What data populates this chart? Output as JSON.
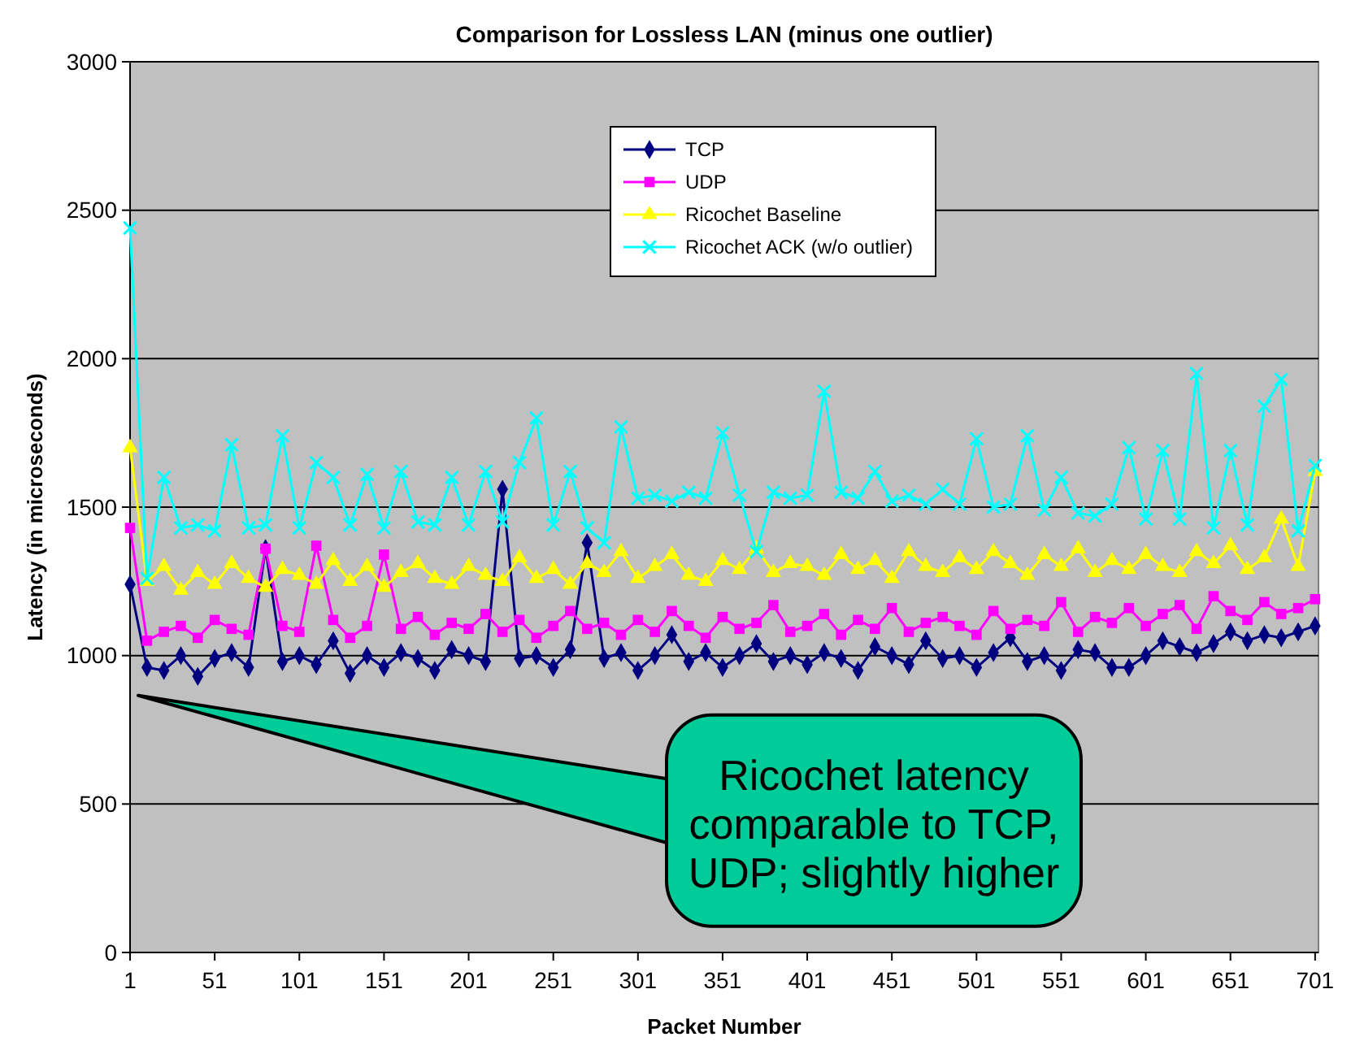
{
  "chart_data": {
    "type": "line",
    "title": "Comparison for Lossless LAN (minus one outlier)",
    "xlabel": "Packet Number",
    "ylabel": "Latency (in microseconds)",
    "x": [
      1,
      11,
      21,
      31,
      41,
      51,
      61,
      71,
      81,
      91,
      101,
      111,
      121,
      131,
      141,
      151,
      161,
      171,
      181,
      191,
      201,
      211,
      221,
      231,
      241,
      251,
      261,
      271,
      281,
      291,
      301,
      311,
      321,
      331,
      341,
      351,
      361,
      371,
      381,
      391,
      401,
      411,
      421,
      431,
      441,
      451,
      461,
      471,
      481,
      491,
      501,
      511,
      521,
      531,
      541,
      551,
      561,
      571,
      581,
      591,
      601,
      611,
      621,
      631,
      641,
      651,
      661,
      671,
      681,
      691,
      701
    ],
    "xlim": [
      1,
      703
    ],
    "xticks": [
      1,
      51,
      101,
      151,
      201,
      251,
      301,
      351,
      401,
      451,
      501,
      551,
      601,
      651,
      701
    ],
    "ylim": [
      0,
      3000
    ],
    "yticks": [
      0,
      500,
      1000,
      1500,
      2000,
      2500,
      3000
    ],
    "grid": "y",
    "legend": "top",
    "series": [
      {
        "name": "TCP",
        "color": "#000080",
        "marker": "diamond",
        "values": [
          1240,
          960,
          950,
          1000,
          930,
          990,
          1010,
          960,
          1360,
          980,
          1000,
          970,
          1050,
          940,
          1000,
          960,
          1010,
          990,
          950,
          1020,
          1000,
          980,
          1560,
          990,
          1000,
          960,
          1020,
          1380,
          990,
          1010,
          950,
          1000,
          1070,
          980,
          1010,
          960,
          1000,
          1040,
          980,
          1000,
          970,
          1010,
          990,
          950,
          1030,
          1000,
          970,
          1050,
          990,
          1000,
          960,
          1010,
          1060,
          980,
          1000,
          950,
          1020,
          1010,
          960,
          960,
          1000,
          1050,
          1030,
          1010,
          1040,
          1080,
          1050,
          1070,
          1060,
          1080,
          1100
        ]
      },
      {
        "name": "UDP",
        "color": "#ff00ff",
        "marker": "square",
        "values": [
          1430,
          1050,
          1080,
          1100,
          1060,
          1120,
          1090,
          1070,
          1360,
          1100,
          1080,
          1370,
          1120,
          1060,
          1100,
          1340,
          1090,
          1130,
          1070,
          1110,
          1090,
          1140,
          1080,
          1120,
          1060,
          1100,
          1150,
          1090,
          1110,
          1070,
          1120,
          1080,
          1150,
          1100,
          1060,
          1130,
          1090,
          1110,
          1170,
          1080,
          1100,
          1140,
          1070,
          1120,
          1090,
          1160,
          1080,
          1110,
          1130,
          1100,
          1070,
          1150,
          1090,
          1120,
          1100,
          1180,
          1080,
          1130,
          1110,
          1160,
          1100,
          1140,
          1170,
          1090,
          1200,
          1150,
          1120,
          1180,
          1140,
          1160,
          1190
        ]
      },
      {
        "name": "Ricochet Baseline",
        "color": "#ffff00",
        "marker": "triangle",
        "values": [
          1700,
          1250,
          1300,
          1220,
          1280,
          1240,
          1310,
          1260,
          1230,
          1290,
          1270,
          1240,
          1320,
          1250,
          1300,
          1230,
          1280,
          1310,
          1260,
          1240,
          1300,
          1270,
          1250,
          1330,
          1260,
          1290,
          1240,
          1310,
          1280,
          1350,
          1260,
          1300,
          1340,
          1270,
          1250,
          1320,
          1290,
          1360,
          1280,
          1310,
          1300,
          1270,
          1340,
          1290,
          1320,
          1260,
          1350,
          1300,
          1280,
          1330,
          1290,
          1350,
          1310,
          1270,
          1340,
          1300,
          1360,
          1280,
          1320,
          1290,
          1340,
          1300,
          1280,
          1350,
          1310,
          1370,
          1290,
          1330,
          1460,
          1300,
          1620
        ]
      },
      {
        "name": "Ricochet ACK (w/o outlier)",
        "color": "#00ffff",
        "marker": "cross",
        "values": [
          2440,
          1260,
          1600,
          1430,
          1440,
          1420,
          1710,
          1430,
          1440,
          1740,
          1430,
          1650,
          1600,
          1440,
          1610,
          1430,
          1620,
          1450,
          1440,
          1600,
          1440,
          1620,
          1450,
          1650,
          1800,
          1440,
          1620,
          1430,
          1380,
          1770,
          1530,
          1540,
          1520,
          1550,
          1530,
          1750,
          1540,
          1350,
          1550,
          1530,
          1540,
          1890,
          1550,
          1530,
          1620,
          1520,
          1540,
          1510,
          1560,
          1510,
          1730,
          1500,
          1510,
          1740,
          1490,
          1600,
          1480,
          1470,
          1510,
          1700,
          1460,
          1690,
          1460,
          1950,
          1430,
          1690,
          1440,
          1840,
          1930,
          1420,
          1640
        ]
      }
    ],
    "annotations": [
      "Ricochet latency comparable to TCP, UDP; slightly higher"
    ]
  }
}
